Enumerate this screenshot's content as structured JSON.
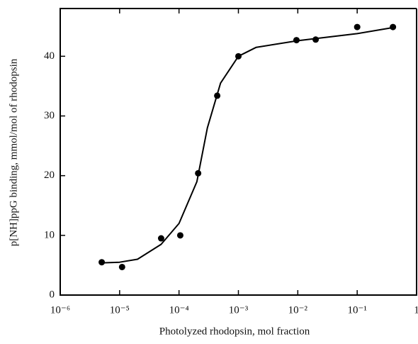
{
  "chart_data": {
    "type": "scatter",
    "x_label": "Photolyzed rhodopsin, mol fraction",
    "y_label": "p[NH]ppG binding, mmol/mol of rhodopsin",
    "xscale": "log",
    "xlim": [
      1e-06,
      1
    ],
    "ylim": [
      0,
      48
    ],
    "xticks": [
      {
        "value": 1e-06,
        "label": "10⁻⁶"
      },
      {
        "value": 1e-05,
        "label": "10⁻⁵"
      },
      {
        "value": 0.0001,
        "label": "10⁻⁴"
      },
      {
        "value": 0.001,
        "label": "10⁻³"
      },
      {
        "value": 0.01,
        "label": "10⁻²"
      },
      {
        "value": 0.1,
        "label": "10⁻¹"
      },
      1
    ],
    "yticks": [
      0,
      10,
      20,
      30,
      40
    ],
    "series": [
      {
        "mode": "markers",
        "color": "#000000",
        "x": [
          5e-06,
          1.1e-05,
          5e-05,
          0.000105,
          0.00021,
          0.00044,
          0.001,
          0.0095,
          0.02,
          0.1,
          0.4
        ],
        "values": [
          5.5,
          4.7,
          9.5,
          10,
          20.4,
          33.4,
          40,
          42.7,
          42.8,
          44.9,
          44.9
        ]
      },
      {
        "mode": "line",
        "color": "#000000",
        "x": [
          5e-06,
          1e-05,
          2e-05,
          5e-05,
          0.0001,
          0.0002,
          0.0003,
          0.0005,
          0.001,
          0.002,
          0.01,
          0.1,
          0.4
        ],
        "values": [
          5.4,
          5.5,
          6,
          8.5,
          12,
          19,
          28,
          35.5,
          40,
          41.5,
          42.6,
          43.8,
          44.8
        ]
      }
    ]
  }
}
